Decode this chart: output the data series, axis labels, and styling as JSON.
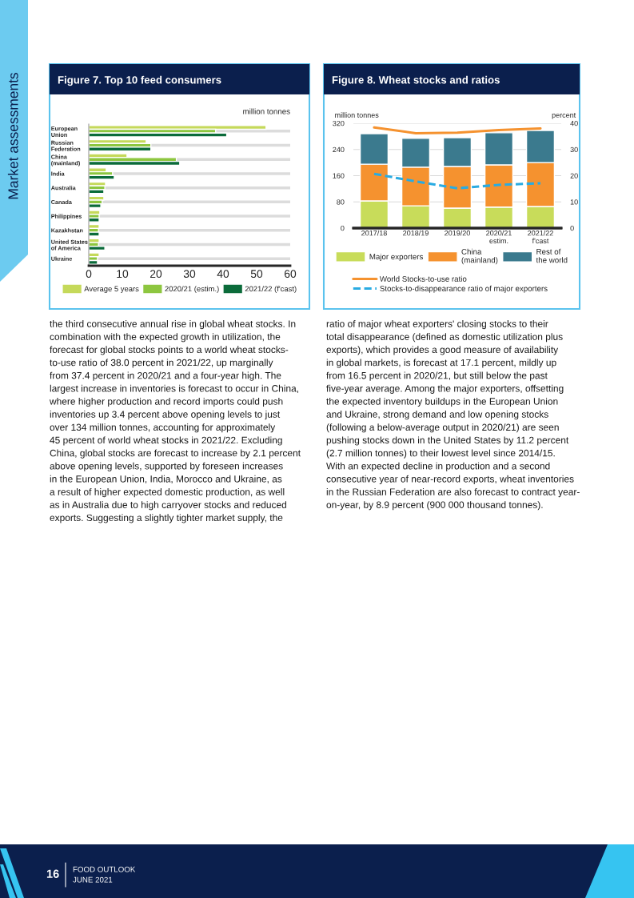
{
  "chart_data": [
    {
      "type": "bar",
      "orientation": "horizontal",
      "title": "Figure 7. Top 10 feed consumers",
      "categories": [
        "European\nUnion",
        "Russian\nFederation",
        "China\n(mainland)",
        "India",
        "Australia",
        "Canada",
        "Philippines",
        "Kazakhstan",
        "United States\nof America",
        "Ukraine"
      ],
      "series": [
        {
          "name": "Average 5 years",
          "color": "#c5d95a",
          "values": [
            52.8,
            17.1,
            11.4,
            5.2,
            5.0,
            4.5,
            3.3,
            3.1,
            3.1,
            3.1
          ]
        },
        {
          "name": "2020/21 (estim.)",
          "color": "#8dc63f",
          "values": [
            37.8,
            18.5,
            26.1,
            7.1,
            4.8,
            4.0,
            3.1,
            2.9,
            2.9,
            2.6
          ]
        },
        {
          "name": "2021/22 (f'cast)",
          "color": "#0b6b3a",
          "values": [
            41.1,
            18.5,
            27.1,
            7.6,
            4.5,
            3.6,
            3.1,
            3.1,
            4.8,
            2.6
          ]
        }
      ],
      "xlim": [
        0,
        60
      ],
      "xticks": [
        0,
        10,
        20,
        30,
        40,
        50,
        60
      ],
      "grid": "y",
      "legend": "bottom",
      "annotations": [
        "million tonnes"
      ]
    },
    {
      "type": "bar",
      "stacked": true,
      "title": "Figure 8. Wheat stocks and ratios",
      "categories": [
        "2017/18",
        "2018/19",
        "2019/20",
        "2020/21\nestim.",
        "2021/22\nf'cast"
      ],
      "ylabel": "million tonnes",
      "y2label": "percent",
      "series": [
        {
          "name": "Major exporters",
          "color": "#c8dc5a",
          "values": [
            83,
            68,
            61,
            64,
            66
          ]
        },
        {
          "name": "China\n(mainland)",
          "color": "#f5922f",
          "values": [
            112,
            118,
            127,
            129,
            134
          ]
        },
        {
          "name": "Rest of\nthe world",
          "color": "#3b7a8e",
          "values": [
            93,
            88,
            88,
            98,
            98
          ]
        },
        {
          "name": "World Stocks-to-use ratio",
          "type": "line",
          "axis": "y2",
          "color": "#f5922f",
          "line_style": "solid",
          "values": [
            38.4,
            36.2,
            36.4,
            37.4,
            38.0
          ]
        },
        {
          "name": "Stocks-to-disappearance ratio of major exporters",
          "type": "line",
          "axis": "y2",
          "color": "#29abe2",
          "line_style": "dashed",
          "values": [
            20.7,
            17.8,
            15.2,
            16.5,
            17.1
          ]
        }
      ],
      "ylim": [
        0,
        320
      ],
      "yticks": [
        0,
        80,
        160,
        240,
        320
      ],
      "y2lim": [
        0,
        40
      ],
      "y2ticks": [
        0,
        10,
        20,
        30,
        40
      ],
      "grid": "y",
      "legend": "bottom"
    },
    {
      "type": "other",
      "annotations": [
        "Market assessments",
        "the third consecutive annual rise in global wheat stocks. In\ncombination with the expected growth in utilization, the\nforecast for global stocks points to a world wheat stocks-\nto-use ratio of 38.0 percent in 2021/22, up marginally\nfrom 37.4 percent in 2020/21 and a four-year high. The\nlargest increase in inventories is forecast to occur in China,\nwhere higher production and record imports could push\ninventories up 3.4 percent above opening levels to just\nover 134 million tonnes, accounting for approximately\n45 percent of world wheat stocks in 2021/22. Excluding\nChina, global stocks are forecast to increase by 2.1 percent\nabove opening levels, supported by foreseen increases\nin the European Union, India, Morocco and Ukraine, as\na result of higher expected domestic production, as well\nas in Australia due to high carryover stocks and reduced\nexports. Suggesting a slightly tighter market supply, the",
        "ratio of major wheat exporters' closing stocks to their\ntotal disappearance (defined as domestic utilization plus\nexports), which provides a good measure of availability\nin global markets, is forecast at 17.1 percent, mildly up\nfrom 16.5 percent in 2020/21, but still below the past\nfive-year average. Among the major exporters, offsetting\nthe expected inventory buildups in the European Union\nand Ukraine, strong demand and low opening stocks\n(following a below-average output in 2020/21) are seen\npushing stocks down in the United States by 11.2 percent\n(2.7 million tonnes) to their lowest level since 2014/15.\nWith an expected decline in production and a second\nconsecutive year of near-record exports, wheat inventories\nin the Russian Federation are also forecast to contract year-\non-year, by 8.9 percent (900 000 thousand tonnes).",
        "16",
        "FOOD OUTLOOK",
        "JUNE 2021"
      ]
    }
  ]
}
